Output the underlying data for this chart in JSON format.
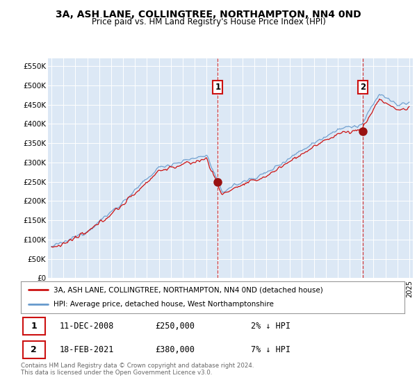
{
  "title": "3A, ASH LANE, COLLINGTREE, NORTHAMPTON, NN4 0ND",
  "subtitle": "Price paid vs. HM Land Registry's House Price Index (HPI)",
  "background_color": "#ffffff",
  "plot_bg_color": "#dce8f5",
  "highlight_bg_color": "#c8ddf0",
  "grid_color": "#ffffff",
  "hpi_color": "#6699cc",
  "price_color": "#cc1111",
  "marker_color": "#cc1111",
  "transaction1": {
    "x": 2008.94,
    "price": 250000,
    "label": "1"
  },
  "transaction2": {
    "x": 2021.13,
    "price": 380000,
    "label": "2"
  },
  "legend_line1": "3A, ASH LANE, COLLINGTREE, NORTHAMPTON, NN4 0ND (detached house)",
  "legend_line2": "HPI: Average price, detached house, West Northamptonshire",
  "annotation1_date": "11-DEC-2008",
  "annotation1_price": "£250,000",
  "annotation1_hpi": "2% ↓ HPI",
  "annotation2_date": "18-FEB-2021",
  "annotation2_price": "£380,000",
  "annotation2_hpi": "7% ↓ HPI",
  "footer": "Contains HM Land Registry data © Crown copyright and database right 2024.\nThis data is licensed under the Open Government Licence v3.0.",
  "ylim": [
    0,
    570000
  ],
  "xlim": [
    1994.7,
    2025.3
  ],
  "yticks": [
    0,
    50000,
    100000,
    150000,
    200000,
    250000,
    300000,
    350000,
    400000,
    450000,
    500000,
    550000
  ],
  "ytick_labels": [
    "£0",
    "£50K",
    "£100K",
    "£150K",
    "£200K",
    "£250K",
    "£300K",
    "£350K",
    "£400K",
    "£450K",
    "£500K",
    "£550K"
  ]
}
